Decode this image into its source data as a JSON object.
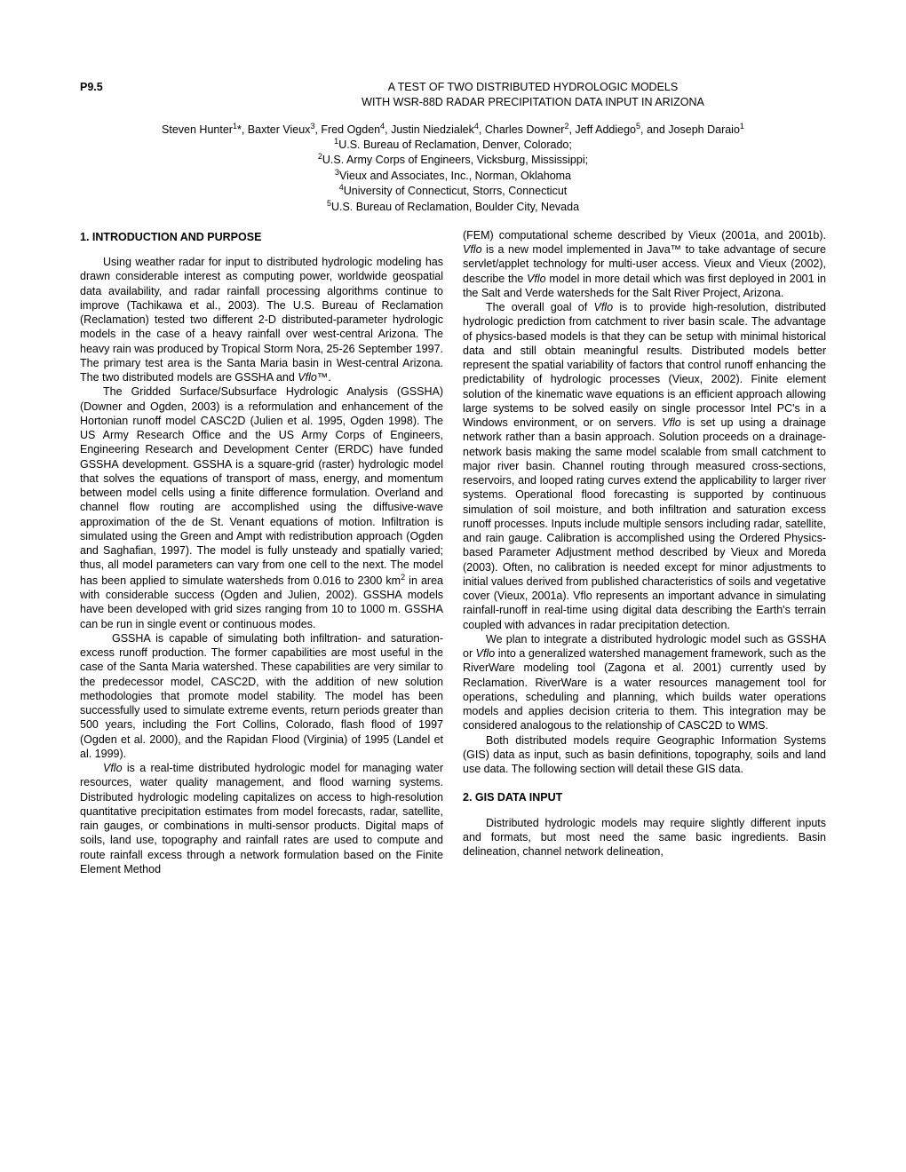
{
  "paper_id": "P9.5",
  "title_line1": "A TEST OF TWO DISTRIBUTED HYDROLOGIC MODELS",
  "title_line2": "WITH WSR-88D RADAR PRECIPITATION DATA INPUT IN ARIZONA",
  "authors_html": "Steven Hunter<sup>1</sup>*, Baxter Vieux<sup>3</sup>, Fred Ogden<sup>4</sup>, Justin Niedzialek<sup>4</sup>, Charles Downer<sup>2</sup>, Jeff Addiego<sup>5</sup>, and Joseph Daraio<sup>1</sup>",
  "affil1": "<sup>1</sup>U.S. Bureau of Reclamation, Denver, Colorado;",
  "affil2": "<sup>2</sup>U.S. Army Corps of Engineers, Vicksburg, Mississippi;",
  "affil3": "<sup>3</sup>Vieux and Associates, Inc., Norman, Oklahoma",
  "affil4": "<sup>4</sup>University of Connecticut, Storrs, Connecticut",
  "affil5": "<sup>5</sup>U.S. Bureau of Reclamation, Boulder City, Nevada",
  "sec1_heading": "1. INTRODUCTION AND PURPOSE",
  "sec1_p1": "Using weather radar for input to distributed hydrologic modeling has drawn considerable interest as computing power, worldwide geospatial data availability, and radar rainfall processing algorithms continue to improve (Tachikawa et al., 2003). The U.S. Bureau of Reclamation (Reclamation) tested two different 2-D distributed-parameter hydrologic models in the case of a heavy rainfall over west-central Arizona. The heavy rain was produced by Tropical Storm Nora, 25-26 September 1997. The primary test area is the Santa Maria basin in West-central Arizona. The two distributed models are GSSHA and <span class=\"italic\">Vflo</span>™.",
  "sec1_p2": "The Gridded Surface/Subsurface Hydrologic Analysis (GSSHA) (Downer and Ogden, 2003) is a reformulation and enhancement of the Hortonian runoff model CASC2D (Julien et al. 1995, Ogden 1998). The US Army Research Office and the US Army Corps of Engineers, Engineering Research and Development Center (ERDC) have funded GSSHA development. GSSHA is a square-grid (raster) hydrologic model that solves the equations of transport of mass, energy, and momentum between model cells using a finite difference formulation. Overland and channel flow routing are accomplished using the diffusive-wave approximation of the de St. Venant equations of motion. Infiltration is simulated using the Green and Ampt with redistribution approach (Ogden and Saghafian, 1997). The model is fully unsteady and spatially varied; thus, all model parameters can vary from one cell to the next. The model has been applied to simulate watersheds from 0.016 to 2300 km<sup>2</sup> in area with considerable success (Ogden and Julien, 2002). GSSHA models have been developed with grid sizes ranging from 10 to 1000 m. GSSHA can be run in single event or continuous modes.",
  "sec1_p3": "GSSHA is capable of simulating both infiltration- and saturation-excess runoff production. The former capabilities are most useful in the case of the Santa Maria watershed. These capabilities are very similar to the predecessor model, CASC2D, with the addition of new solution methodologies that promote model stability. The model has been successfully used to simulate extreme events, return periods greater than 500 years, including the Fort Collins, Colorado, flash flood of 1997 (Ogden et al. 2000), and the Rapidan Flood (Virginia) of 1995 (Landel et al. 1999).",
  "sec1_p4": "<span class=\"italic\">Vflo</span> is a real-time distributed hydrologic model for managing water resources, water quality management, and flood warning systems. Distributed hydrologic modeling capitalizes on access to high-resolution quantitative precipitation estimates from model forecasts, radar, satellite, rain gauges, or combinations in multi-sensor products. Digital maps of soils, land use, topography and rainfall rates are used to compute and route rainfall excess through a network formulation based on the Finite Element Method",
  "col2_p1": "(FEM) computational scheme described by Vieux (2001a, and 2001b). <span class=\"italic\">Vflo</span> is a new model implemented in Java™ to take advantage of secure servlet/applet technology for multi-user access. Vieux and Vieux (2002), describe the <span class=\"italic\">Vflo</span> model in more detail which was first deployed in 2001 in the Salt and Verde watersheds for the Salt River Project, Arizona.",
  "col2_p2": "The overall goal of <span class=\"italic\">Vflo</span> is to provide high-resolution, distributed hydrologic prediction from catchment to river basin scale. The advantage of physics-based models is that they can be setup with minimal historical data and still obtain meaningful results. Distributed models better represent the spatial variability of factors that control runoff enhancing the predictability of hydrologic processes (Vieux, 2002). Finite element solution of the kinematic wave equations is an efficient approach allowing large systems to be solved easily on single processor Intel PC's in a Windows environment, or on servers. <span class=\"italic\">Vflo</span> is set up using a drainage network rather than a basin approach. Solution proceeds on a drainage-network basis making the same model scalable from small catchment to major river basin. Channel routing through measured cross-sections, reservoirs, and looped rating curves extend the applicability to larger river systems. Operational flood forecasting is supported by continuous simulation of soil moisture, and both infiltration and saturation excess runoff processes. Inputs include multiple sensors including radar, satellite, and rain gauge. Calibration is accomplished using the Ordered Physics-based Parameter Adjustment method described by Vieux and Moreda (2003). Often, no calibration is needed except for minor adjustments to initial values derived from published characteristics of soils and vegetative cover (Vieux, 2001a). Vflo represents an important advance in simulating rainfall-runoff in real-time using digital data describing the Earth's terrain coupled with advances in radar precipitation detection.",
  "col2_p3": "We plan to integrate a distributed hydrologic model such as GSSHA or <span class=\"italic\">Vflo</span> into a generalized watershed management framework, such as the RiverWare modeling tool (Zagona et al. 2001) currently used by Reclamation. RiverWare is a water resources management tool for operations, scheduling and planning, which builds water operations models and applies decision criteria to them. This integration may be considered analogous to the relationship of CASC2D to WMS.",
  "col2_p4": "Both distributed models require Geographic Information Systems (GIS) data as input, such as basin definitions, topography, soils and land use data. The following section will detail these GIS data.",
  "sec2_heading": "2.  GIS DATA INPUT",
  "sec2_p1": "Distributed hydrologic models may require slightly different inputs and formats, but most need the same basic ingredients. Basin delineation, channel network delineation,"
}
